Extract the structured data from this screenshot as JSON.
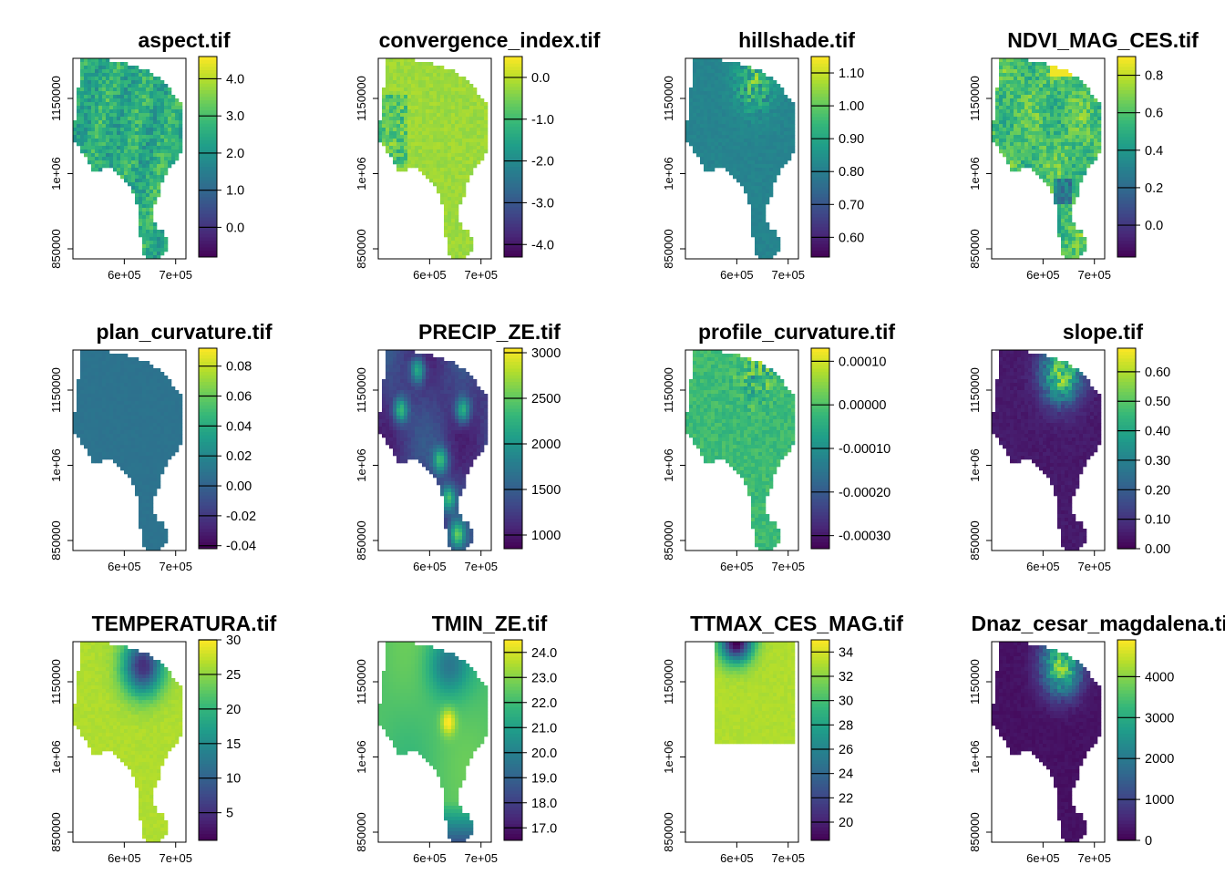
{
  "chart_data": {
    "type": "heatmap",
    "colormap": [
      "#440154",
      "#482878",
      "#3e4989",
      "#31688e",
      "#26828e",
      "#1f9e89",
      "#35b779",
      "#6ece58",
      "#b5de2b",
      "#fde725"
    ],
    "x_ticks": [
      "6e+05",
      "7e+05"
    ],
    "y_ticks": [
      "850000",
      "1e+06",
      "1150000"
    ],
    "panels": [
      {
        "title": "aspect.tif",
        "legend_ticks": [
          "0.0",
          "1.0",
          "2.0",
          "3.0",
          "4.0"
        ],
        "range": [
          -0.8,
          4.6
        ],
        "pattern": "aspect"
      },
      {
        "title": "convergence_index.tif",
        "legend_ticks": [
          "-4.0",
          "-3.0",
          "-2.0",
          "-1.0",
          "0.0"
        ],
        "range": [
          -4.3,
          0.5
        ],
        "pattern": "convergence"
      },
      {
        "title": "hillshade.tif",
        "legend_ticks": [
          "0.60",
          "0.70",
          "0.80",
          "0.90",
          "1.00",
          "1.10"
        ],
        "range": [
          0.54,
          1.15
        ],
        "pattern": "hillshade"
      },
      {
        "title": "NDVI_MAG_CES.tif",
        "legend_ticks": [
          "0.0",
          "0.2",
          "0.4",
          "0.6",
          "0.8"
        ],
        "range": [
          -0.17,
          0.9
        ],
        "pattern": "ndvi"
      },
      {
        "title": "plan_curvature.tif",
        "legend_ticks": [
          "-0.04",
          "-0.02",
          "0.00",
          "0.02",
          "0.04",
          "0.06",
          "0.08"
        ],
        "range": [
          -0.042,
          0.092
        ],
        "pattern": "plancurv"
      },
      {
        "title": "PRECIP_ZE.tif",
        "legend_ticks": [
          "1000",
          "1500",
          "2000",
          "2500",
          "3000"
        ],
        "range": [
          850,
          3050
        ],
        "pattern": "precip"
      },
      {
        "title": "profile_curvature.tif",
        "legend_ticks": [
          "-0.00030",
          "-0.00020",
          "-0.00010",
          "0.00000",
          "0.00010"
        ],
        "range": [
          -0.00033,
          0.00013
        ],
        "pattern": "profcurv"
      },
      {
        "title": "slope.tif",
        "legend_ticks": [
          "0.00",
          "0.10",
          "0.20",
          "0.30",
          "0.40",
          "0.50",
          "0.60"
        ],
        "range": [
          0,
          0.68
        ],
        "pattern": "slope"
      },
      {
        "title": "TEMPERATURA.tif",
        "legend_ticks": [
          "5",
          "10",
          "15",
          "20",
          "25",
          "30"
        ],
        "range": [
          1,
          30
        ],
        "pattern": "temp"
      },
      {
        "title": "TMIN_ZE.tif",
        "legend_ticks": [
          "17.0",
          "18.0",
          "19.0",
          "20.0",
          "21.0",
          "22.0",
          "23.0",
          "24.0"
        ],
        "range": [
          16.5,
          24.5
        ],
        "pattern": "tmin"
      },
      {
        "title": "TTMAX_CES_MAG.tif",
        "legend_ticks": [
          "20",
          "22",
          "24",
          "26",
          "28",
          "30",
          "32",
          "34"
        ],
        "range": [
          18.5,
          35
        ],
        "pattern": "tmax"
      },
      {
        "title": "Dnaz_cesar_magdalena.tif",
        "legend_ticks": [
          "0",
          "1000",
          "2000",
          "3000",
          "4000"
        ],
        "range": [
          0,
          4900
        ],
        "pattern": "dem"
      }
    ]
  }
}
